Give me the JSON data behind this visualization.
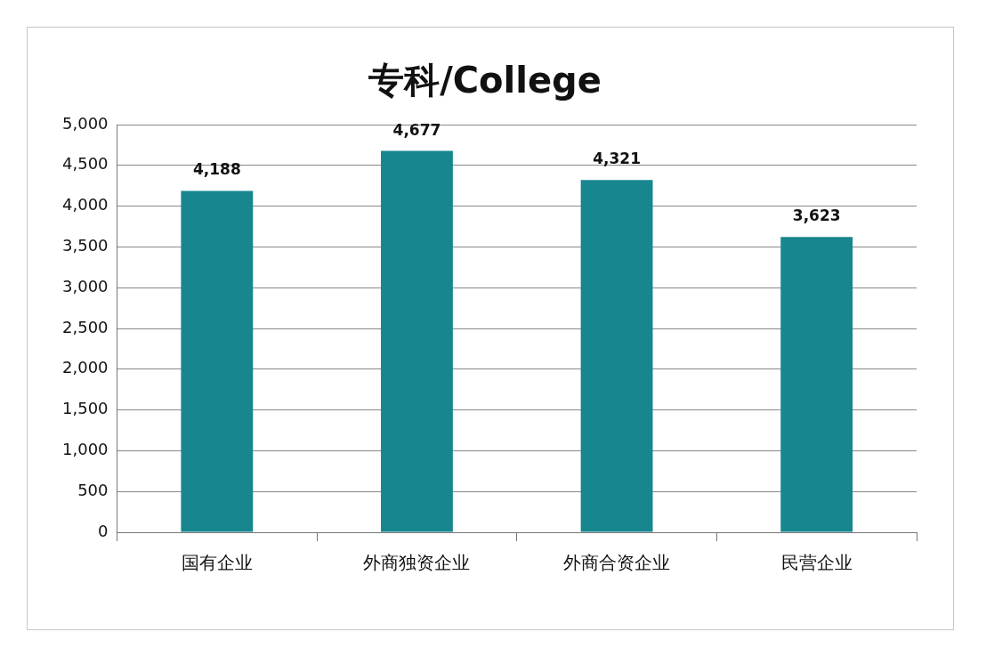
{
  "chart_data": {
    "type": "bar",
    "title": "专科/College",
    "categories": [
      "国有企业",
      "外商独资企业",
      "外商合资企业",
      "民营企业"
    ],
    "values": [
      4188,
      4677,
      4321,
      3623
    ],
    "color": "#17868f",
    "ylim": [
      0,
      5000
    ],
    "yticks": [
      {
        "value": 0,
        "label": "0"
      },
      {
        "value": 500,
        "label": "500"
      },
      {
        "value": 1000,
        "label": "1,000"
      },
      {
        "value": 1500,
        "label": "1,500"
      },
      {
        "value": 2000,
        "label": "2,000"
      },
      {
        "value": 2500,
        "label": "2,500"
      },
      {
        "value": 3000,
        "label": "3,000"
      },
      {
        "value": 3500,
        "label": "3,500"
      },
      {
        "value": 4000,
        "label": "4,000"
      },
      {
        "value": 4500,
        "label": "4,500"
      },
      {
        "value": 5000,
        "label": "5,000"
      }
    ],
    "value_labels": [
      "4,188",
      "4,677",
      "4,321",
      "3,623"
    ],
    "grid": "y",
    "legend": false
  }
}
